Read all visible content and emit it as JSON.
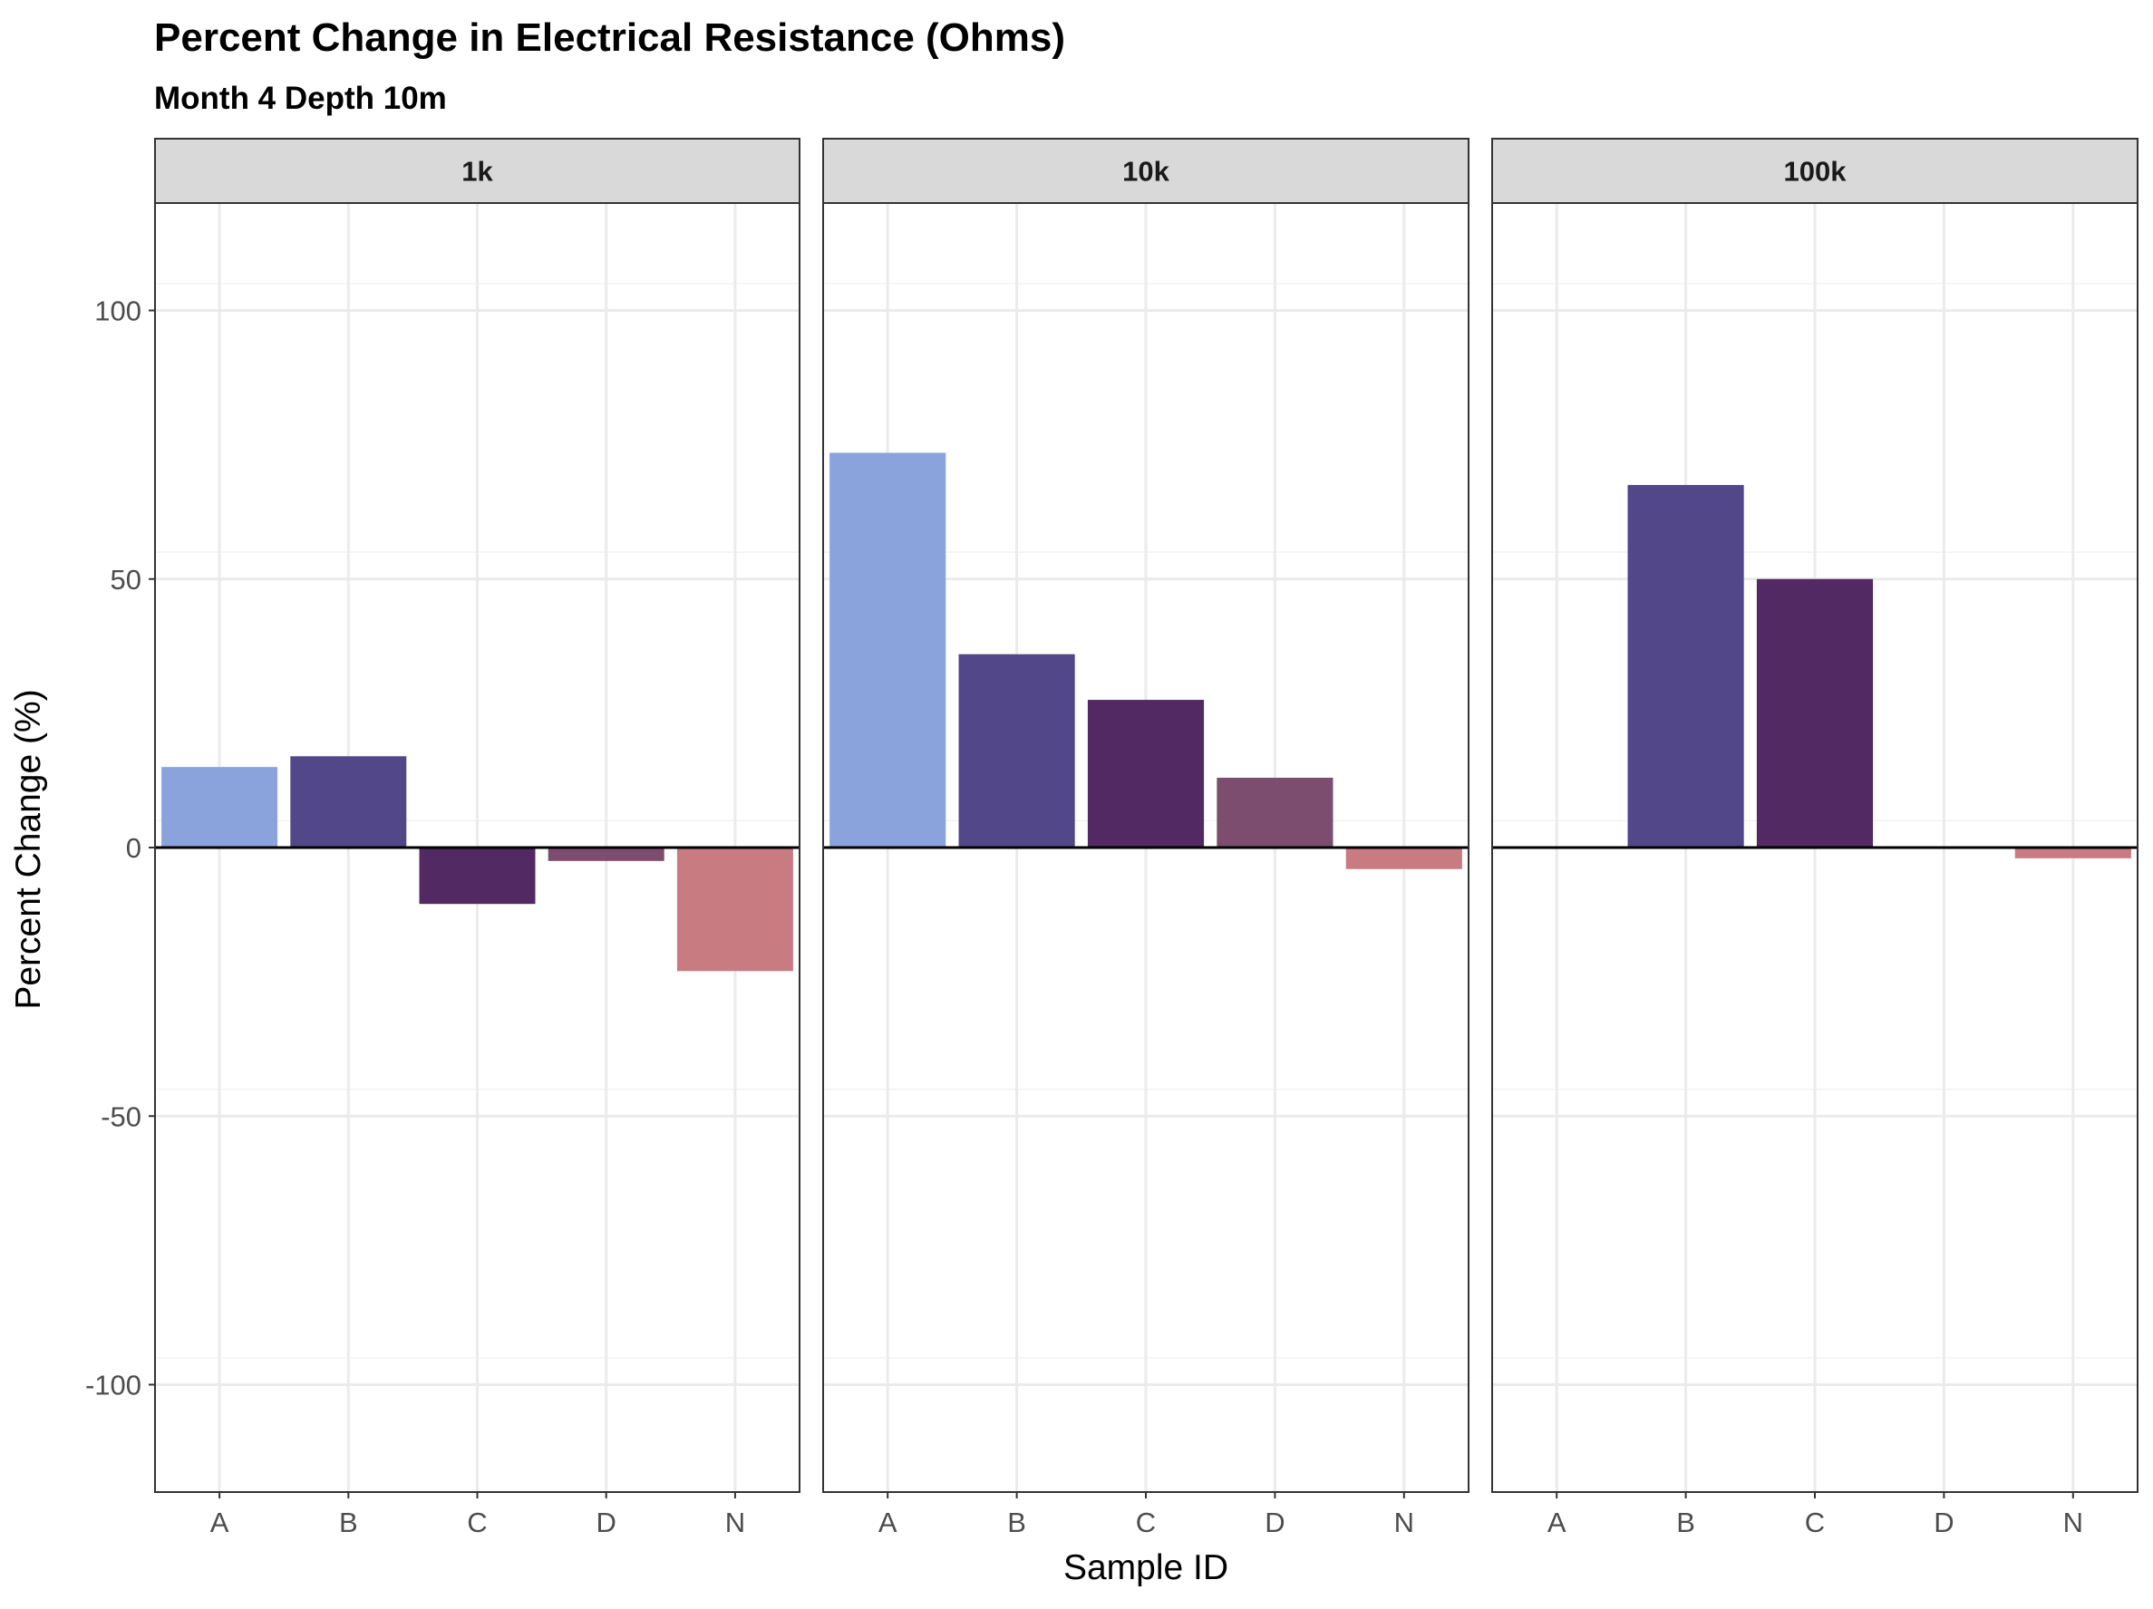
{
  "chart_data": {
    "type": "bar",
    "title": "Percent Change in Electrical Resistance (Ohms)",
    "subtitle": "Month 4 Depth 10m",
    "xlabel": "Sample ID",
    "ylabel": "Percent Change (%)",
    "ylim": [
      -120,
      120
    ],
    "yticks": [
      -100,
      -50,
      0,
      50,
      100
    ],
    "ytick_labels": [
      "-100",
      "-50",
      "0",
      "50",
      "100"
    ],
    "categories": [
      "A",
      "B",
      "C",
      "D",
      "N"
    ],
    "colors": {
      "A": "#8aa3dc",
      "B": "#524789",
      "C": "#522963",
      "D": "#7c4d6f",
      "N": "#c97b82"
    },
    "grid": true,
    "legend": "none",
    "facets": [
      {
        "label": "1k",
        "values": [
          15,
          17,
          -10.5,
          -2.5,
          -23
        ]
      },
      {
        "label": "10k",
        "values": [
          73.5,
          36,
          27.5,
          13,
          -4
        ]
      },
      {
        "label": "100k",
        "values": [
          0,
          67.5,
          50,
          0,
          -2
        ]
      }
    ]
  }
}
